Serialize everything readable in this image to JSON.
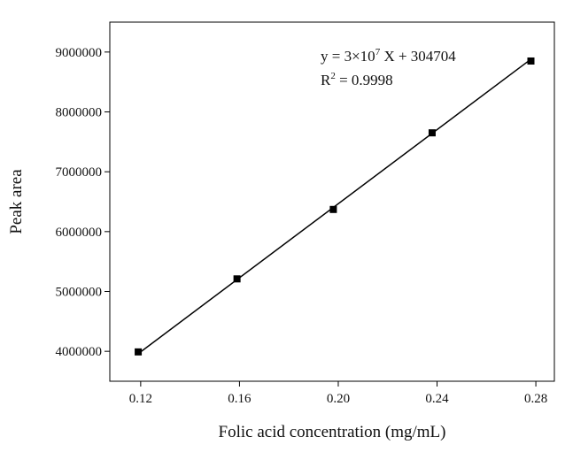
{
  "chart_data": {
    "type": "scatter",
    "title": "",
    "xlabel": "Folic acid concentration (mg/mL)",
    "ylabel": "Peak area",
    "xlim": [
      0.1075,
      0.2875
    ],
    "ylim": [
      3500000,
      9500000
    ],
    "xticks": [
      0.12,
      0.16,
      0.2,
      0.24,
      0.28
    ],
    "xtick_labels": [
      "0.12",
      "0.16",
      "0.20",
      "0.24",
      "0.28"
    ],
    "yticks": [
      4000000,
      5000000,
      6000000,
      7000000,
      8000000,
      9000000
    ],
    "ytick_labels": [
      "4000000",
      "5000000",
      "6000000",
      "7000000",
      "8000000",
      "9000000"
    ],
    "grid": false,
    "series": [
      {
        "x": [
          0.119,
          0.159,
          0.198,
          0.238,
          0.278
        ],
        "y": [
          3990000,
          5210000,
          6370000,
          7650000,
          8850000
        ],
        "marker": "square",
        "color": "#000000"
      }
    ],
    "fit_line": {
      "x": [
        0.119,
        0.278
      ],
      "y": [
        3960000,
        8880000
      ],
      "color": "#000000"
    },
    "annotation": {
      "equation_prefix": "y = 3×10",
      "equation_exponent": "7",
      "equation_suffix": " X + 304704",
      "r2_prefix": "R",
      "r2_exponent": "2",
      "r2_suffix": " = 0.9998"
    }
  }
}
